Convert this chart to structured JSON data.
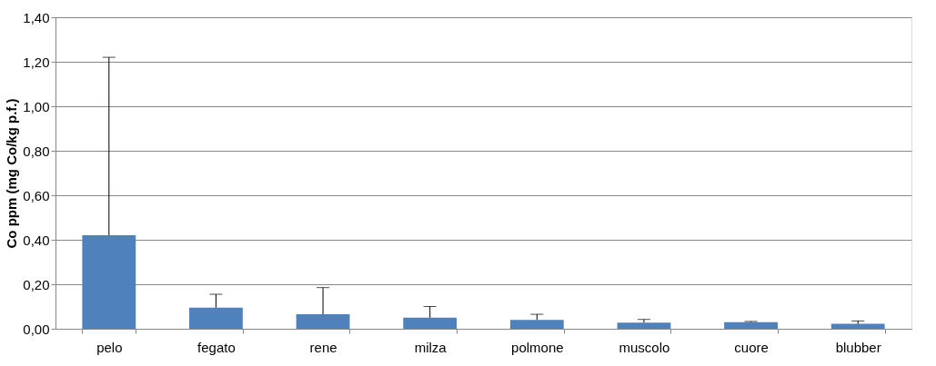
{
  "chart_data": {
    "type": "bar",
    "ylabel": "Co ppm (mg Co/kg p.f.)",
    "categories": [
      "pelo",
      "fegato",
      "rene",
      "milza",
      "polmone",
      "muscolo",
      "cuore",
      "blubber"
    ],
    "values": [
      0.42,
      0.095,
      0.065,
      0.05,
      0.04,
      0.028,
      0.03,
      0.022
    ],
    "errors": [
      [
        0.42,
        1.22
      ],
      [
        0.095,
        0.155
      ],
      [
        0.065,
        0.185
      ],
      [
        0.05,
        0.1
      ],
      [
        0.04,
        0.065
      ],
      [
        0.028,
        0.042
      ],
      [
        0.03,
        0.033
      ],
      [
        0.022,
        0.035
      ]
    ],
    "color": "#4f81bd",
    "ylim": [
      0,
      1.4
    ],
    "yticks": [
      {
        "value": 0,
        "label": "0,00"
      },
      {
        "value": 0.2,
        "label": "0,20"
      },
      {
        "value": 0.4,
        "label": "0,40"
      },
      {
        "value": 0.6,
        "label": "0,60"
      },
      {
        "value": 0.8,
        "label": "0,80"
      },
      {
        "value": 1.0,
        "label": "1,00"
      },
      {
        "value": 1.2,
        "label": "1,20"
      },
      {
        "value": 1.4,
        "label": "1,40"
      }
    ],
    "grid": "y"
  }
}
